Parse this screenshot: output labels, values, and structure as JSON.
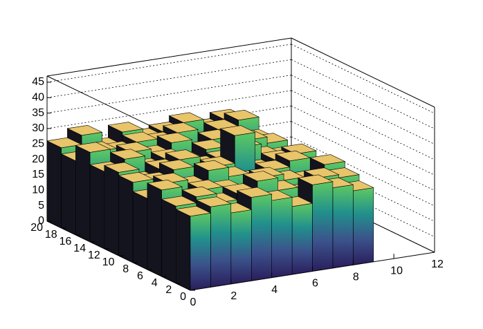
{
  "chart_data": {
    "type": "lego",
    "x_bins": [
      0,
      1,
      2,
      3,
      4,
      5,
      6,
      7,
      8,
      9
    ],
    "y_bins": [
      0,
      2,
      4,
      6,
      8,
      10,
      12,
      14,
      16,
      18,
      20
    ],
    "values": [
      [
        24,
        26,
        23,
        27,
        25,
        22,
        28,
        26,
        24
      ],
      [
        25,
        27,
        24,
        26,
        29,
        25,
        23,
        27,
        26
      ],
      [
        28,
        24,
        26,
        25,
        23,
        27,
        25,
        24,
        28
      ],
      [
        23,
        27,
        25,
        29,
        26,
        24,
        26,
        28,
        25
      ],
      [
        26,
        25,
        28,
        24,
        27,
        36,
        24,
        26,
        27
      ],
      [
        27,
        23,
        26,
        28,
        25,
        26,
        29,
        25,
        24
      ],
      [
        25,
        28,
        24,
        26,
        24,
        27,
        25,
        28,
        26
      ],
      [
        29,
        24,
        27,
        25,
        28,
        23,
        27,
        24,
        25
      ],
      [
        24,
        26,
        25,
        27,
        26,
        28,
        24,
        27,
        29
      ],
      [
        26,
        29,
        24,
        28,
        25,
        26,
        28,
        25,
        27
      ]
    ],
    "xlim": [
      0,
      12
    ],
    "xticks": [
      0,
      2,
      4,
      6,
      8,
      10,
      12
    ],
    "ylim": [
      0,
      20
    ],
    "yticks": [
      0,
      2,
      4,
      6,
      8,
      10,
      12,
      14,
      16,
      18,
      20
    ],
    "zlim": [
      0,
      47
    ],
    "zticks": [
      0,
      5,
      10,
      15,
      20,
      25,
      30,
      35,
      40,
      45
    ],
    "grid": true,
    "top_color": "#e8c46a",
    "left_color": "#14141f",
    "side_colors": [
      "#5ec962",
      "#21918c",
      "#3b528b",
      "#2a1e5c"
    ]
  }
}
